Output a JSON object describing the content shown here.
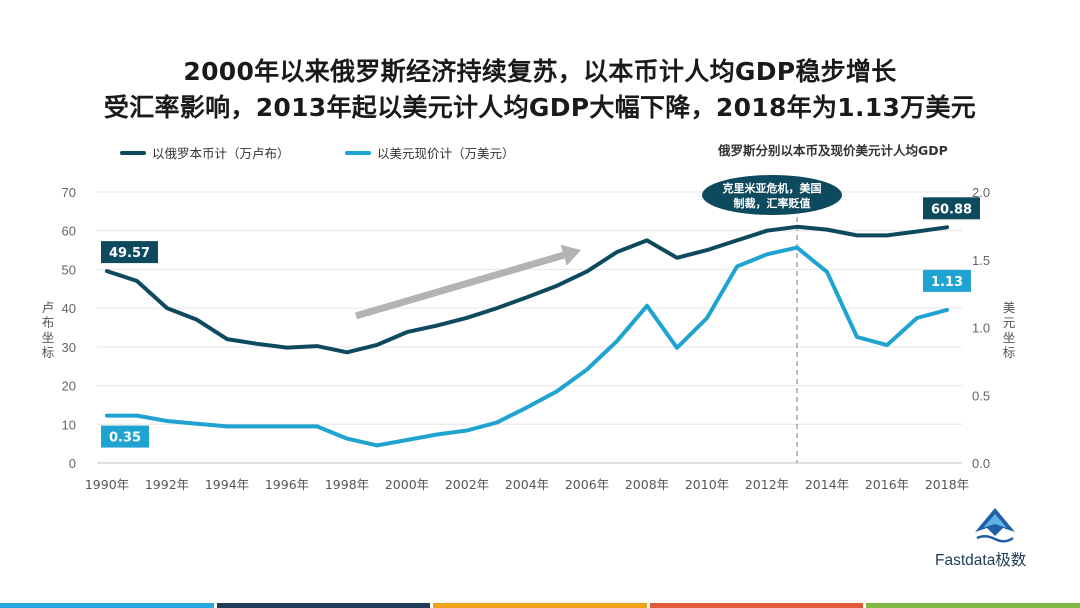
{
  "title_line1": "2000年以来俄罗斯经济持续复苏，以本币计人均GDP稳步增长",
  "title_line2": "受汇率影响，2013年起以美元计人均GDP大幅下降，2018年为1.13万美元",
  "legend": {
    "series1": "以俄罗本币计（万卢布）",
    "series2": "以美元现价计（万美元）"
  },
  "chart_data": {
    "type": "line",
    "title": "俄罗斯分别以本币及现价美元计人均GDP",
    "x_tick_labels": [
      "1990年",
      "1992年",
      "1994年",
      "1996年",
      "1998年",
      "2000年",
      "2002年",
      "2004年",
      "2006年",
      "2008年",
      "2010年",
      "2012年",
      "2014年",
      "2016年",
      "2018年"
    ],
    "x": [
      1990,
      1991,
      1992,
      1993,
      1994,
      1995,
      1996,
      1997,
      1998,
      1999,
      2000,
      2001,
      2002,
      2003,
      2004,
      2005,
      2006,
      2007,
      2008,
      2009,
      2010,
      2011,
      2012,
      2013,
      2014,
      2015,
      2016,
      2017,
      2018
    ],
    "xlim": [
      1990,
      2018
    ],
    "y_left_label": "卢布坐标",
    "y_right_label": "美元坐标",
    "y_left_lim": [
      0,
      70
    ],
    "y_left_ticks": [
      "0",
      "10",
      "20",
      "30",
      "40",
      "50",
      "60",
      "70"
    ],
    "y_right_lim": [
      0,
      2.0
    ],
    "y_right_ticks": [
      "0.0",
      "0.5",
      "1.0",
      "1.5",
      "2.0"
    ],
    "series": [
      {
        "name": "以俄罗本币计（万卢布）",
        "axis": "left",
        "color": "#0d4a5e",
        "values": [
          49.57,
          47,
          40,
          37,
          32,
          30.8,
          29.8,
          30.2,
          28.6,
          30.5,
          33.8,
          35.5,
          37.5,
          40,
          42.8,
          45.8,
          49.5,
          54.5,
          57.5,
          53,
          55,
          57.5,
          60,
          61,
          60.3,
          58.8,
          58.8,
          59.8,
          60.88
        ]
      },
      {
        "name": "以美元现价计（万美元）",
        "axis": "right",
        "color": "#1fa3d1",
        "values": [
          0.35,
          0.35,
          0.31,
          0.29,
          0.27,
          0.27,
          0.27,
          0.27,
          0.18,
          0.13,
          0.17,
          0.21,
          0.24,
          0.3,
          0.41,
          0.53,
          0.69,
          0.9,
          1.16,
          0.85,
          1.07,
          1.45,
          1.54,
          1.59,
          1.41,
          0.93,
          0.87,
          1.07,
          1.13
        ]
      }
    ],
    "data_labels": [
      {
        "text": "49.57",
        "series": 0,
        "x": 1990,
        "color": "#0d4a5e"
      },
      {
        "text": "60.88",
        "series": 0,
        "x": 2018,
        "color": "#0d4a5e"
      },
      {
        "text": "0.35",
        "series": 1,
        "x": 1990,
        "color": "#1fa3d1"
      },
      {
        "text": "1.13",
        "series": 1,
        "x": 2018,
        "color": "#1fa3d1"
      }
    ],
    "annotation": {
      "line1": "克里米亚危机，美国",
      "line2": "制裁，汇率贬值",
      "x": 2013
    },
    "trend_arrow": {
      "from_x": 1998.3,
      "from_y_left": 38,
      "to_x": 2005.8,
      "to_y_left": 55,
      "color": "#b3b3b3"
    },
    "grid": true
  },
  "brand": {
    "name": "Fastdata极数",
    "color": "#1f5fa5"
  },
  "bottom_bar_colors": [
    "#27a8e0",
    "#1f3b57",
    "#f4a21b",
    "#e35b3a",
    "#7fb843"
  ]
}
